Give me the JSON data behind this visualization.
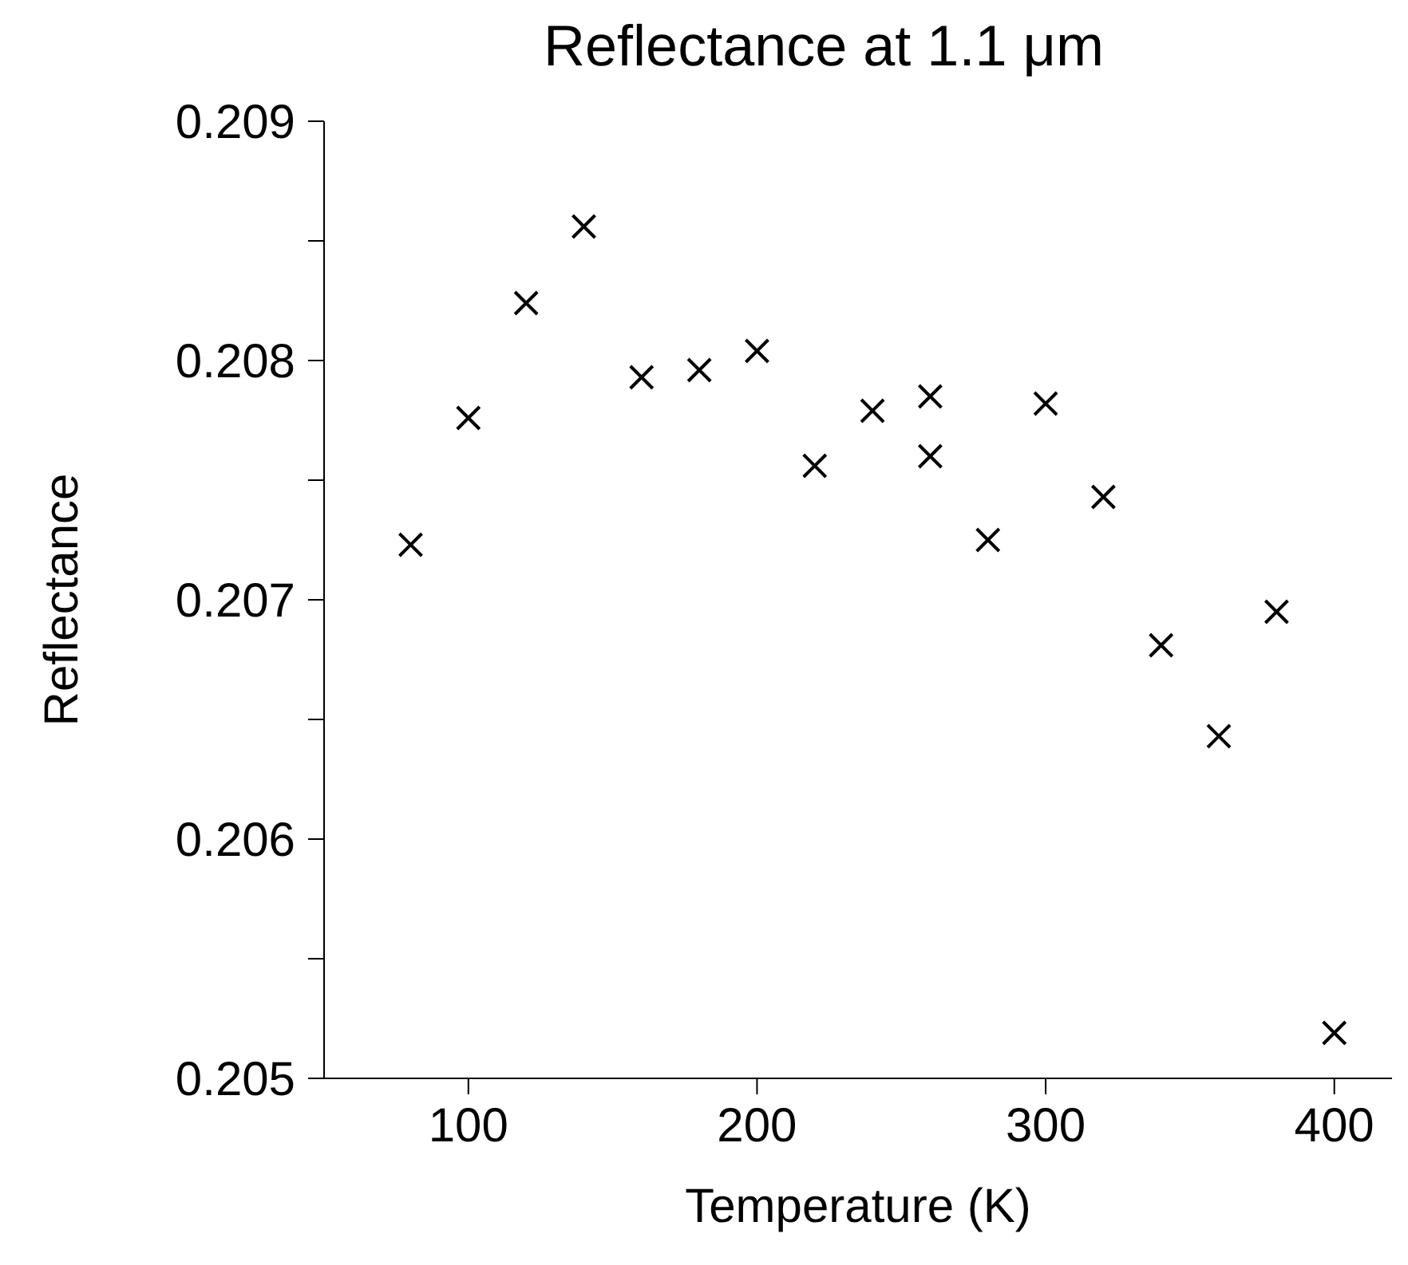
{
  "chart_data": {
    "type": "scatter",
    "title": "Reflectance at 1.1 μm",
    "xlabel": "Temperature (K)",
    "ylabel": "Reflectance",
    "x": [
      80,
      100,
      120,
      140,
      160,
      180,
      200,
      220,
      240,
      260,
      260,
      280,
      300,
      320,
      340,
      360,
      380,
      400
    ],
    "series": [
      {
        "color": "#000000",
        "values": [
          0.20723,
          0.20776,
          0.20824,
          0.20856,
          0.20793,
          0.20796,
          0.20804,
          0.20756,
          0.20779,
          0.20785,
          0.2076,
          0.20725,
          0.20782,
          0.20743,
          0.20681,
          0.20643,
          0.20695,
          0.20519
        ]
      }
    ],
    "xlim": [
      50,
      420
    ],
    "xticks": [
      100,
      200,
      300,
      400
    ],
    "ylim": [
      0.205,
      0.209
    ],
    "yticks": [
      0.205,
      {
        "value": 0.2055,
        "label": null
      },
      0.206,
      {
        "value": 0.2065,
        "label": null
      },
      0.207,
      {
        "value": 0.2075,
        "label": null
      },
      0.208,
      {
        "value": 0.2085,
        "label": null
      },
      0.209
    ],
    "marker": "cross",
    "grid": false
  }
}
